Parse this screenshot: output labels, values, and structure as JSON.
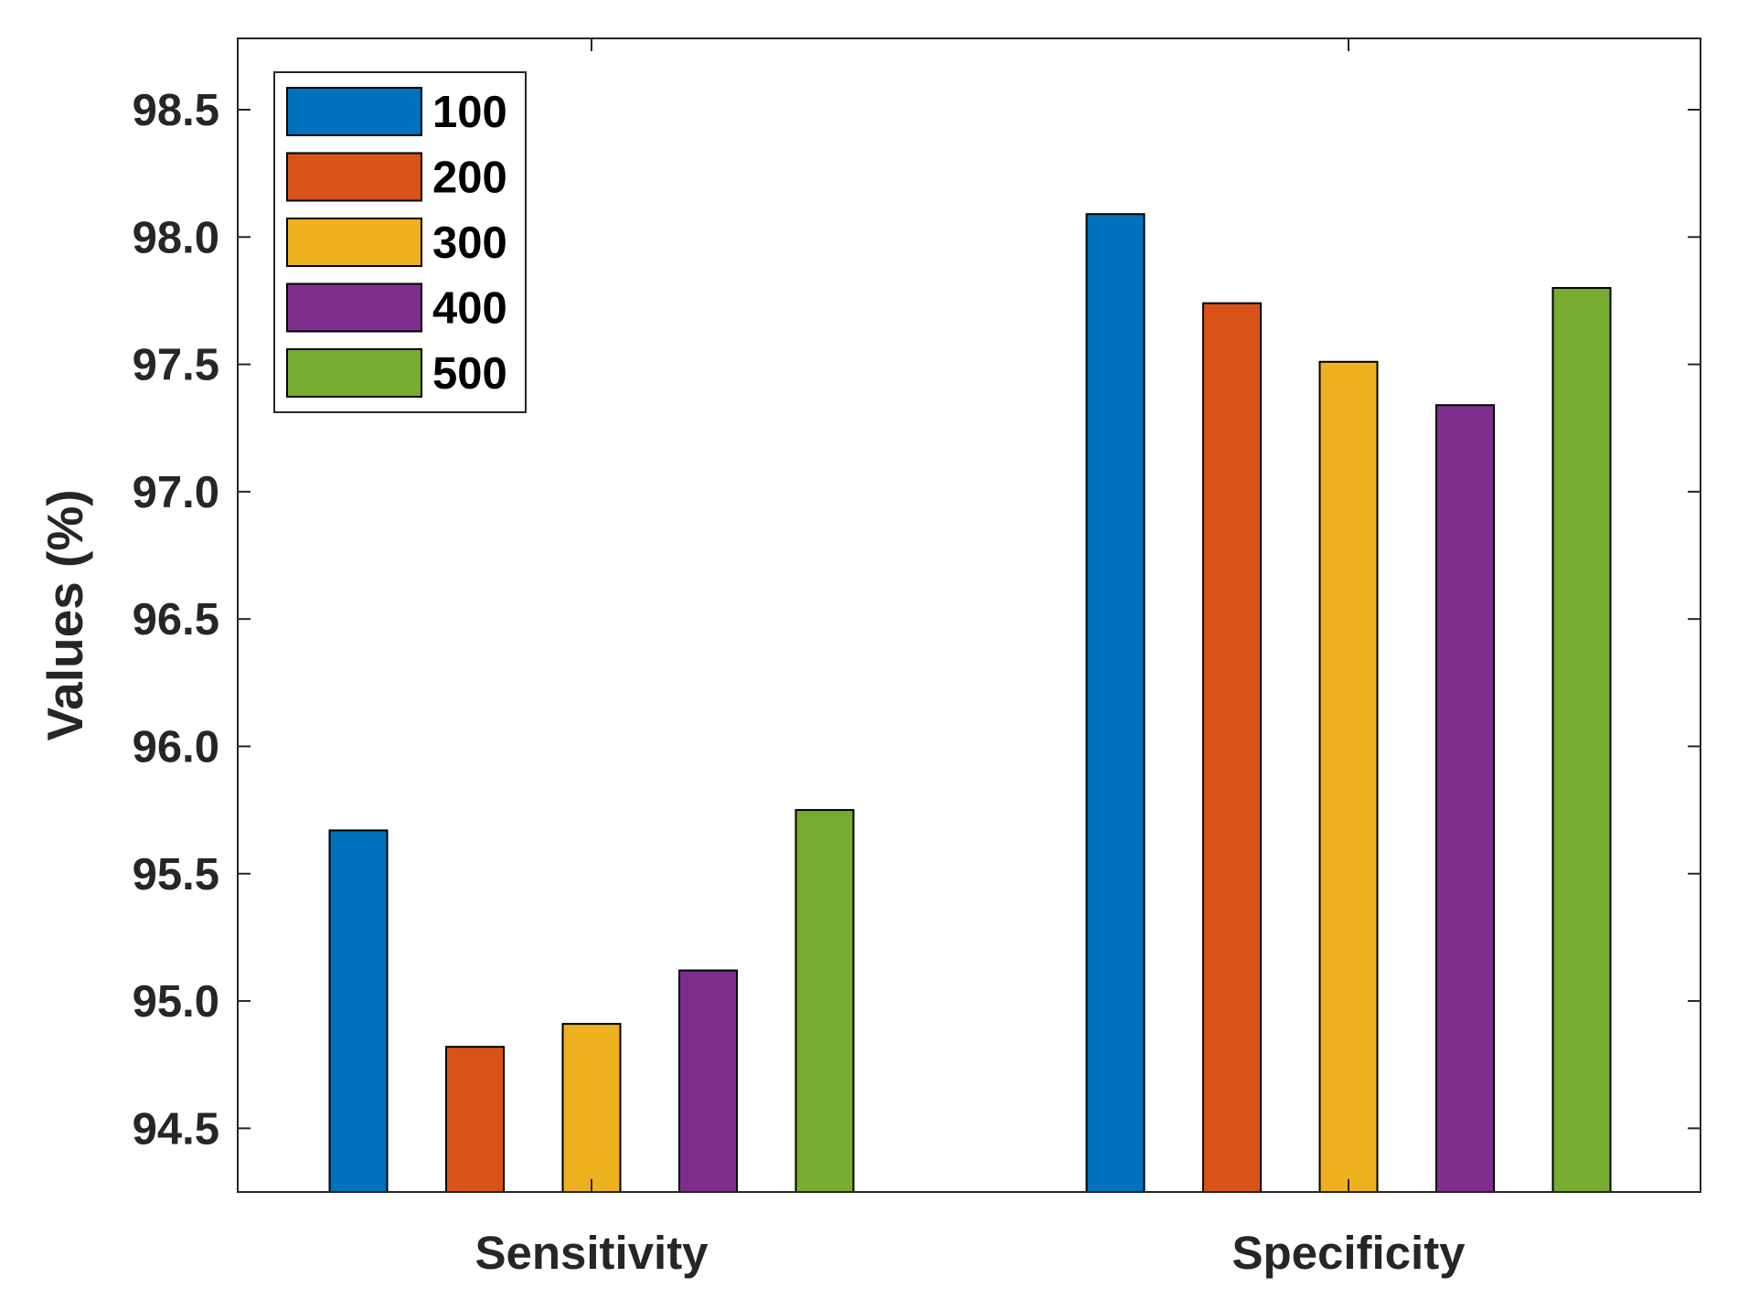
{
  "chart_data": {
    "type": "bar",
    "title": "",
    "xlabel": "",
    "ylabel": "Values (%)",
    "categories": [
      "Sensitivity",
      "Specificity"
    ],
    "ylim": [
      94.25,
      98.78
    ],
    "yticks": [
      "94.5",
      "95.0",
      "95.5",
      "96.0",
      "96.5",
      "97.0",
      "97.5",
      "98.0",
      "98.5"
    ],
    "legend_position": "top-left",
    "grid": false,
    "series": [
      {
        "name": "100",
        "color": "#0072BD",
        "values": [
          95.67,
          98.09
        ]
      },
      {
        "name": "200",
        "color": "#D95319",
        "values": [
          94.82,
          97.74
        ]
      },
      {
        "name": "300",
        "color": "#EDB120",
        "values": [
          94.91,
          97.51
        ]
      },
      {
        "name": "400",
        "color": "#7E2F8E",
        "values": [
          95.12,
          97.34
        ]
      },
      {
        "name": "500",
        "color": "#77AC30",
        "values": [
          95.75,
          97.8
        ]
      }
    ]
  }
}
